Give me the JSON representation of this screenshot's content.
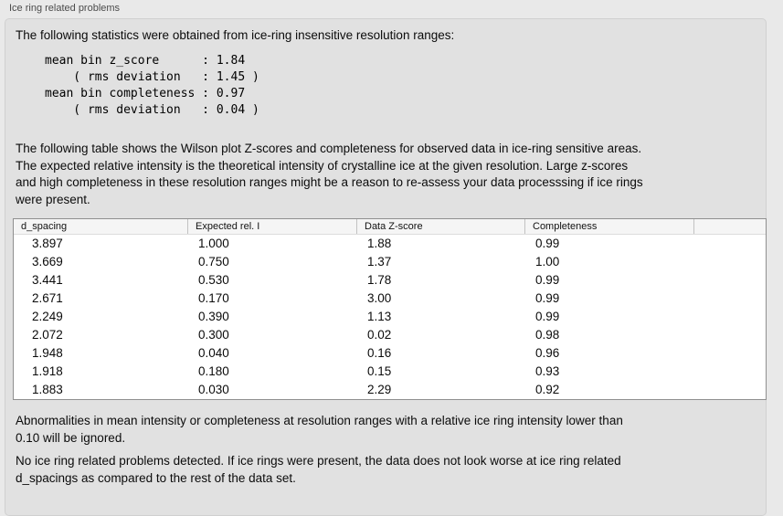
{
  "panel": {
    "title": "Ice ring related problems"
  },
  "intro": {
    "text": "The following statistics were obtained from ice-ring insensitive resolution ranges:",
    "stats_block": "mean bin z_score      : 1.84\n    ( rms deviation   : 1.45 )\nmean bin completeness : 0.97\n    ( rms deviation   : 0.04 )",
    "mean_bin_z_score": 1.84,
    "z_score_rms_deviation": 1.45,
    "mean_bin_completeness": 0.97,
    "completeness_rms_deviation": 0.04
  },
  "description": "The following table shows the Wilson plot Z-scores and completeness for observed data in ice-ring sensitive areas.\nThe expected relative intensity is the theoretical intensity of crystalline ice at the given resolution. Large z-scores\nand high completeness in these resolution ranges might be a reason to re-assess your data processsing if ice rings\nwere present.",
  "table": {
    "columns": [
      "d_spacing",
      "Expected rel. I",
      "Data Z-score",
      "Completeness",
      ""
    ],
    "rows": [
      [
        "3.897",
        "1.000",
        "1.88",
        "0.99",
        ""
      ],
      [
        "3.669",
        "0.750",
        "1.37",
        "1.00",
        ""
      ],
      [
        "3.441",
        "0.530",
        "1.78",
        "0.99",
        ""
      ],
      [
        "2.671",
        "0.170",
        "3.00",
        "0.99",
        ""
      ],
      [
        "2.249",
        "0.390",
        "1.13",
        "0.99",
        ""
      ],
      [
        "2.072",
        "0.300",
        "0.02",
        "0.98",
        ""
      ],
      [
        "1.948",
        "0.040",
        "0.16",
        "0.96",
        ""
      ],
      [
        "1.918",
        "0.180",
        "0.15",
        "0.93",
        ""
      ],
      [
        "1.883",
        "0.030",
        "2.29",
        "0.92",
        ""
      ]
    ]
  },
  "notes": {
    "ignore_note": "Abnormalities in mean intensity or completeness at resolution ranges with a relative ice ring intensity lower than\n0.10 will be ignored.",
    "conclusion": "No ice ring related problems detected. If ice rings were present, the data does not look worse at ice ring related\nd_spacings as compared to the rest of the data set."
  },
  "colors": {
    "window_background": "#e9e9e9",
    "groupbox_background": "#e1e1e1",
    "groupbox_border": "#d0d0d0",
    "table_background": "#ffffff",
    "table_border": "#8f8f8f",
    "table_header_background": "#f5f5f5",
    "text": "#0b0b0b",
    "label_text": "#4b4b4b"
  }
}
